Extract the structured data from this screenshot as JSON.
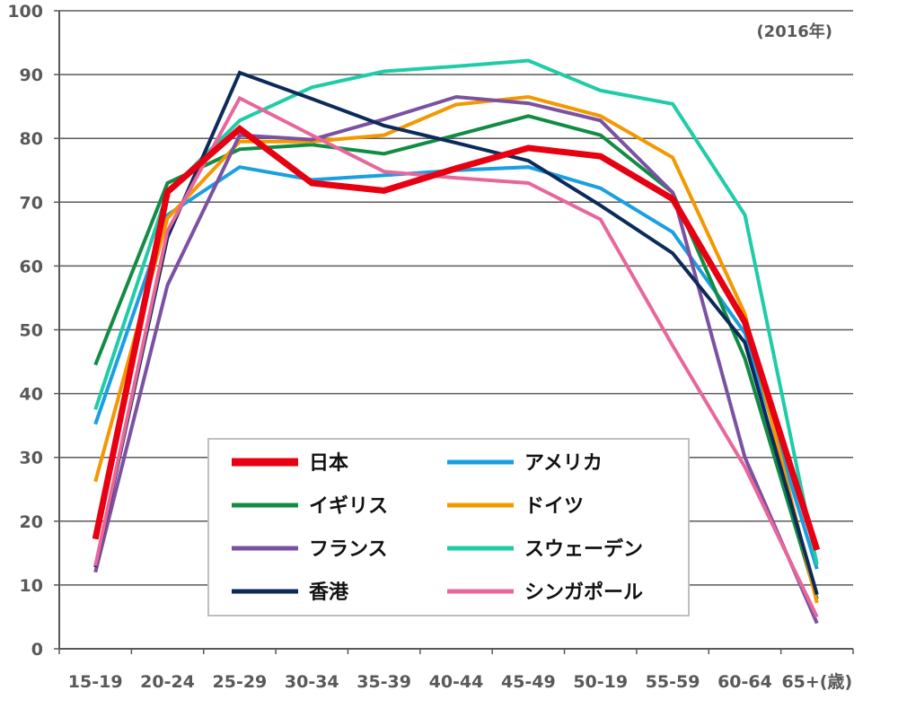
{
  "chart_data": {
    "type": "line",
    "title": "",
    "note": "(2016年)",
    "xlabel": "",
    "ylabel": "",
    "ylim": [
      0,
      100
    ],
    "yticks": [
      0,
      10,
      20,
      30,
      40,
      50,
      60,
      70,
      80,
      90,
      100
    ],
    "categories": [
      "15-19",
      "20-24",
      "25-29",
      "30-34",
      "35-39",
      "40-44",
      "45-49",
      "50-19",
      "55-59",
      "60-64",
      "65+(歳)"
    ],
    "legend_position": "bottom-left (inside plot)",
    "series": [
      {
        "name": "日本",
        "color": "#e60012",
        "width": 7,
        "values": [
          17.2,
          71.6,
          81.5,
          73.0,
          71.8,
          75.3,
          78.5,
          77.2,
          70.5,
          51.2,
          15.5
        ]
      },
      {
        "name": "アメリカ",
        "color": "#1a9fe0",
        "width": 4,
        "values": [
          35.2,
          68.0,
          75.5,
          73.5,
          74.2,
          75.0,
          75.5,
          72.2,
          65.3,
          49.5,
          12.5
        ]
      },
      {
        "name": "イギリス",
        "color": "#128c44",
        "width": 4,
        "values": [
          44.5,
          73.0,
          78.3,
          79.0,
          77.6,
          80.5,
          83.5,
          80.5,
          71.5,
          45.5,
          7.8
        ]
      },
      {
        "name": "ドイツ",
        "color": "#f39800",
        "width": 4,
        "values": [
          26.2,
          67.5,
          79.5,
          79.5,
          80.5,
          85.3,
          86.5,
          83.5,
          77.0,
          52.5,
          7.2
        ]
      },
      {
        "name": "フランス",
        "color": "#7b51a1",
        "width": 4,
        "values": [
          12.0,
          57.0,
          80.5,
          79.8,
          83.0,
          86.5,
          85.5,
          82.8,
          71.5,
          30.0,
          4.0
        ]
      },
      {
        "name": "スウェーデン",
        "color": "#1fcca8",
        "width": 4,
        "values": [
          37.5,
          71.5,
          82.8,
          88.0,
          90.5,
          91.3,
          92.2,
          87.5,
          85.4,
          68.0,
          13.2
        ]
      },
      {
        "name": "香港",
        "color": "#0c2a5a",
        "width": 4,
        "values": [
          12.8,
          64.5,
          90.3,
          86.2,
          82.0,
          79.3,
          76.5,
          69.5,
          62.0,
          48.0,
          8.5
        ]
      },
      {
        "name": "シンガポール",
        "color": "#e8679b",
        "width": 4,
        "values": [
          13.0,
          65.5,
          86.3,
          80.5,
          74.8,
          73.8,
          73.0,
          67.3,
          47.5,
          28.5,
          5.0
        ]
      }
    ]
  }
}
